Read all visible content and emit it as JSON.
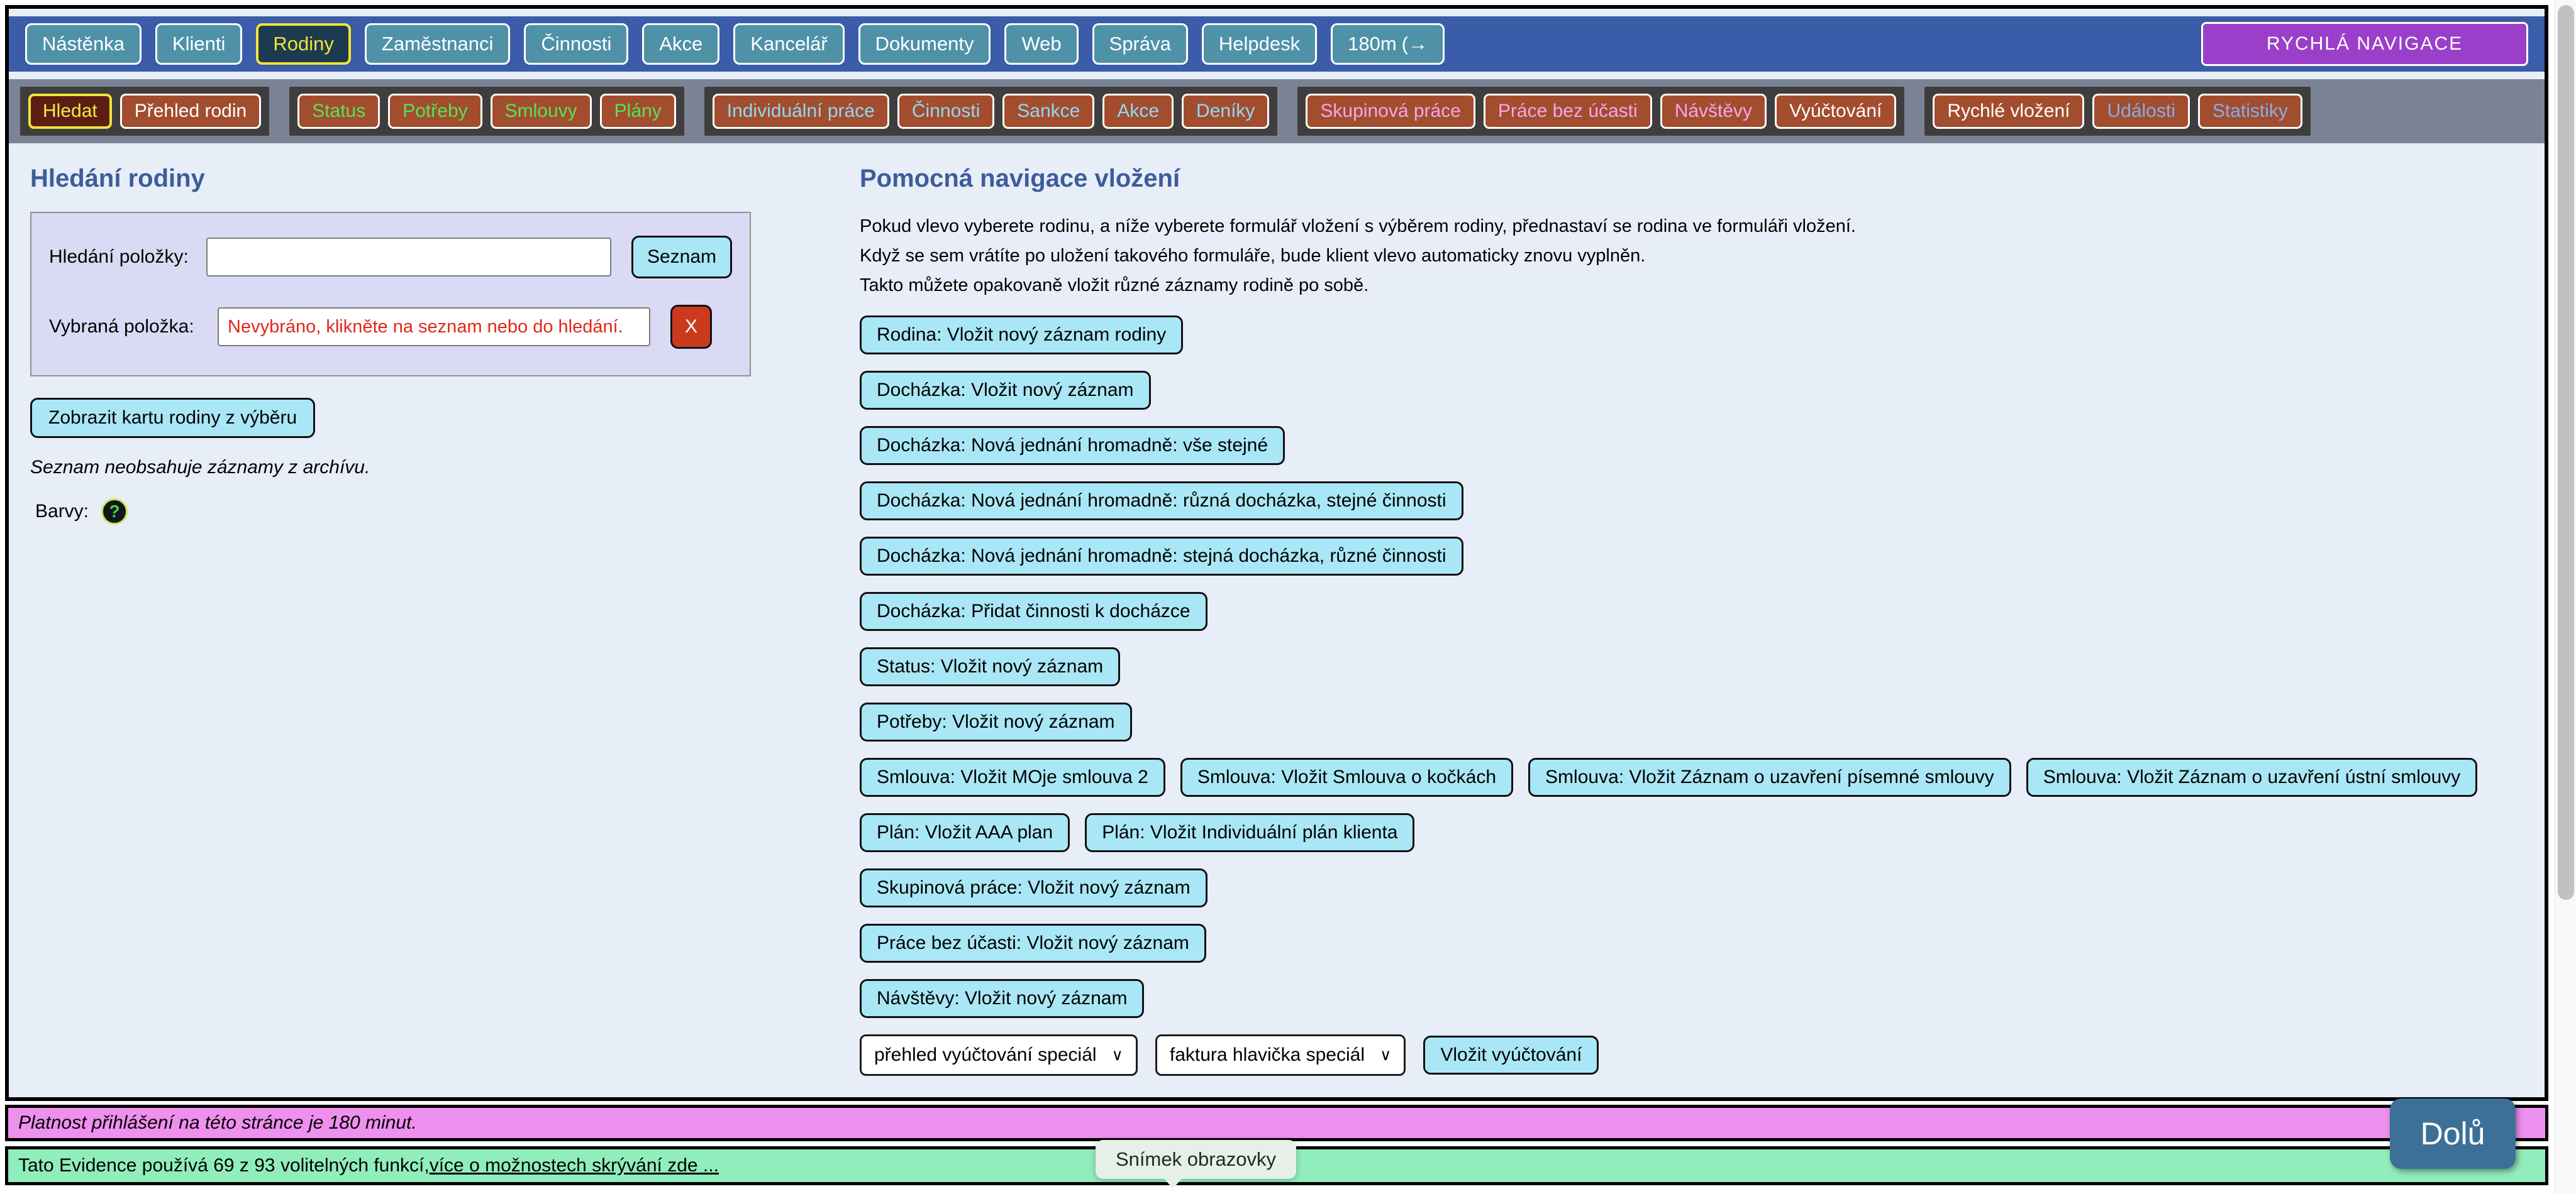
{
  "colors": {
    "content_bg": "#e8eef7",
    "top_bar": "#3b5ca8",
    "top_button_bg": "#4f92a8",
    "top_active_bg": "#1d3b50",
    "active_yellow": "#f2e435",
    "quick_nav_bg": "#9a3fca",
    "sub_bar_bg": "#7b8494",
    "group_bg": "#3e3e3e",
    "sub_button_bg": "#a34d2f",
    "sub_active_bg": "#5c1d15",
    "heading": "#3c5c9c",
    "panel_bg": "#dadaf4",
    "cyan_button_bg": "#a9e7f6",
    "red_button_bg": "#cc3a1e",
    "warning_text": "#e02818",
    "session_bar_bg": "#ee90ee",
    "features_bar_bg": "#90edbc",
    "down_button_bg": "#3c7097"
  },
  "top_nav": {
    "items": [
      {
        "label": "Nástěnka",
        "active": false
      },
      {
        "label": "Klienti",
        "active": false
      },
      {
        "label": "Rodiny",
        "active": true
      },
      {
        "label": "Zaměstnanci",
        "active": false
      },
      {
        "label": "Činnosti",
        "active": false
      },
      {
        "label": "Akce",
        "active": false
      },
      {
        "label": "Kancelář",
        "active": false
      },
      {
        "label": "Dokumenty",
        "active": false
      },
      {
        "label": "Web",
        "active": false
      },
      {
        "label": "Správa",
        "active": false
      },
      {
        "label": "Helpdesk",
        "active": false
      },
      {
        "label": "180m",
        "active": false,
        "icon": "logout-icon",
        "icon_glyph": "(→"
      }
    ],
    "quick_nav_label": "RYCHLÁ NAVIGACE"
  },
  "sub_nav": {
    "groups": [
      {
        "items": [
          {
            "label": "Hledat",
            "color": "#f5ea3e",
            "active": true
          },
          {
            "label": "Přehled rodin",
            "color": "#ffffff",
            "active": false
          }
        ]
      },
      {
        "items": [
          {
            "label": "Status",
            "color": "#55e455",
            "active": false
          },
          {
            "label": "Potřeby",
            "color": "#55e455",
            "active": false
          },
          {
            "label": "Smlouvy",
            "color": "#55e455",
            "active": false
          },
          {
            "label": "Plány",
            "color": "#55e455",
            "active": false
          }
        ]
      },
      {
        "items": [
          {
            "label": "Individuální práce",
            "color": "#8fd9f2",
            "active": false
          },
          {
            "label": "Činnosti",
            "color": "#8fd9f2",
            "active": false
          },
          {
            "label": "Sankce",
            "color": "#8fd9f2",
            "active": false
          },
          {
            "label": "Akce",
            "color": "#8fd9f2",
            "active": false
          },
          {
            "label": "Deníky",
            "color": "#8fd9f2",
            "active": false
          }
        ]
      },
      {
        "items": [
          {
            "label": "Skupinová práce",
            "color": "#f2a8e8",
            "active": false
          },
          {
            "label": "Práce bez účasti",
            "color": "#f2a8e8",
            "active": false
          },
          {
            "label": "Návštěvy",
            "color": "#f2a8e8",
            "active": false
          },
          {
            "label": "Vyúčtování",
            "color": "#ffffff",
            "active": false
          }
        ]
      },
      {
        "items": [
          {
            "label": "Rychlé vložení",
            "color": "#ffffff",
            "active": false
          },
          {
            "label": "Události",
            "color": "#85aeea",
            "active": false
          },
          {
            "label": "Statistiky",
            "color": "#85aeea",
            "active": false
          }
        ]
      }
    ]
  },
  "search_panel": {
    "title": "Hledání rodiny",
    "search_label": "Hledání položky:",
    "search_value": "",
    "list_button": "Seznam",
    "selected_label": "Vybraná položka:",
    "selected_value": "Nevybráno, klikněte na seznam nebo do hledání.",
    "clear_button": "X",
    "show_card_button": "Zobrazit kartu rodiny z výběru",
    "archive_note": "Seznam neobsahuje záznamy z archívu.",
    "colors_label": "Barvy:",
    "help_icon_glyph": "?"
  },
  "insert_nav": {
    "title": "Pomocná navigace vložení",
    "description_lines": [
      "Pokud vlevo vyberete rodinu, a níže vyberete formulář vložení s výběrem rodiny, přednastaví se rodina ve formuláři vložení.",
      "Když se sem vrátíte po uložení takového formuláře, bude klient vlevo automaticky znovu vyplněn.",
      "Takto můžete opakovaně vložit různé záznamy rodině po sobě."
    ],
    "button_rows": [
      [
        "Rodina: Vložit nový záznam rodiny"
      ],
      [
        "Docházka: Vložit nový záznam"
      ],
      [
        "Docházka: Nová jednání hromadně: vše stejné"
      ],
      [
        "Docházka: Nová jednání hromadně: různá docházka, stejné činnosti"
      ],
      [
        "Docházka: Nová jednání hromadně: stejná docházka, různé činnosti"
      ],
      [
        "Docházka: Přidat činnosti k docházce"
      ],
      [
        "Status: Vložit nový záznam"
      ],
      [
        "Potřeby: Vložit nový záznam"
      ],
      [
        "Smlouva: Vložit MOje smlouva 2",
        "Smlouva: Vložit Smlouva o kočkách",
        "Smlouva: Vložit Záznam o uzavření písemné smlouvy",
        "Smlouva: Vložit Záznam o uzavření ústní smlouvy"
      ],
      [
        "Plán: Vložit AAA plan",
        "Plán: Vložit Individuální plán klienta"
      ],
      [
        "Skupinová práce: Vložit nový záznam"
      ],
      [
        "Práce bez účasti: Vložit nový záznam"
      ],
      [
        "Návštěvy: Vložit nový záznam"
      ]
    ],
    "invoice_row": {
      "selects": [
        "přehled vyúčtování speciál",
        "faktura hlavička speciál"
      ],
      "chevron_glyph": "∨",
      "button": "Vložit vyúčtování"
    }
  },
  "footer": {
    "session_bar_text": "Platnost přihlášení na této stránce je 180 minut.",
    "features_text": "Tato Evidence používá 69 z 93 volitelných funkcí, ",
    "features_link": "více o možnostech skrývání zde ...",
    "tooltip_text": "Snímek obrazovky",
    "down_button": "Dolů"
  }
}
